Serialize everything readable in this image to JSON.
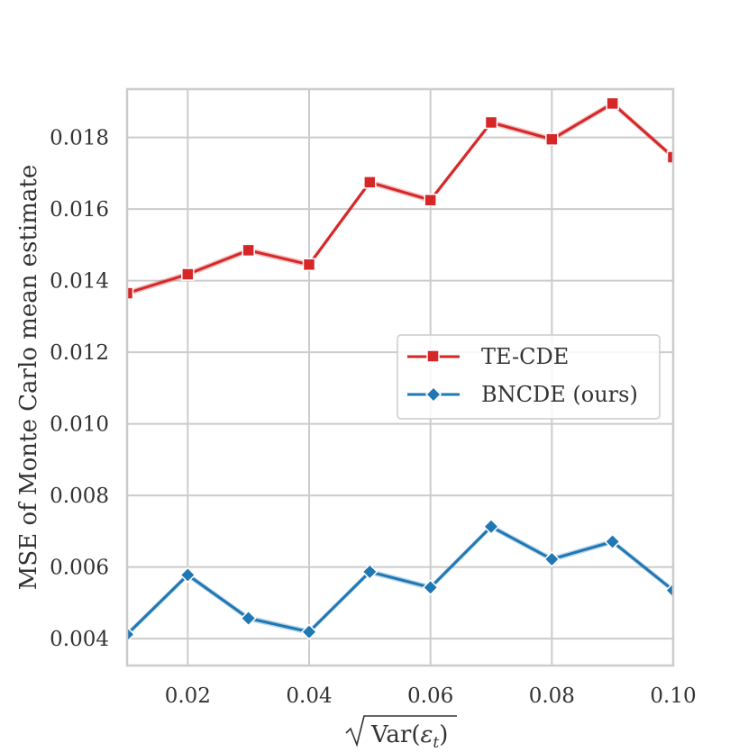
{
  "chart_data": {
    "type": "line",
    "title": "",
    "xlabel_prefix": "Var(",
    "xlabel_symbol": "ε",
    "xlabel_subscript": "t",
    "xlabel_suffix": ")",
    "ylabel": "MSE of Monte Carlo mean estimate",
    "x": [
      0.01,
      0.02,
      0.03,
      0.04,
      0.05,
      0.06,
      0.07,
      0.08,
      0.09,
      0.1
    ],
    "xlim": [
      0.01,
      0.1
    ],
    "ylim": [
      0.00325,
      0.01935
    ],
    "xticks": [
      0.02,
      0.04,
      0.06,
      0.08,
      0.1
    ],
    "xtick_labels": [
      "0.02",
      "0.04",
      "0.06",
      "0.08",
      "0.10"
    ],
    "yticks": [
      0.004,
      0.006,
      0.008,
      0.01,
      0.012,
      0.014,
      0.016,
      0.018
    ],
    "ytick_labels": [
      "0.004",
      "0.006",
      "0.008",
      "0.010",
      "0.012",
      "0.014",
      "0.016",
      "0.018"
    ],
    "grid": true,
    "legend_position": "center-right",
    "series": [
      {
        "name": "TE-CDE",
        "color": "#d62728",
        "marker": "square",
        "values": [
          0.01365,
          0.01418,
          0.01485,
          0.01445,
          0.01675,
          0.01625,
          0.01842,
          0.01795,
          0.01895,
          0.01745
        ],
        "band": 8e-05
      },
      {
        "name": "BNCDE (ours)",
        "color": "#1f77b4",
        "marker": "diamond",
        "values": [
          0.00412,
          0.00578,
          0.00457,
          0.00419,
          0.00587,
          0.00543,
          0.00713,
          0.00622,
          0.00671,
          0.00535
        ],
        "band": 8e-05
      }
    ]
  }
}
